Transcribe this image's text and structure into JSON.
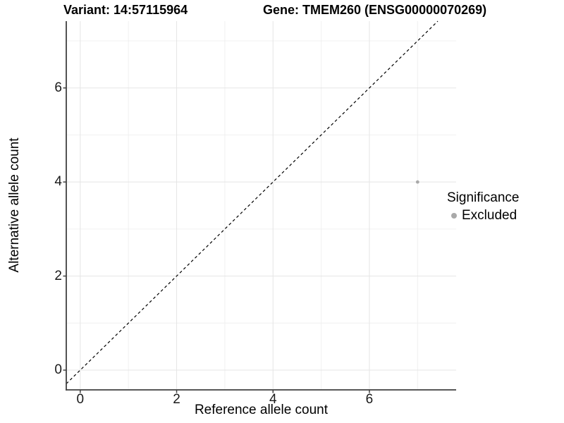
{
  "titles": {
    "variant": "Variant: 14:57115964",
    "gene": "Gene: TMEM260 (ENSG00000070269)"
  },
  "chart_data": {
    "type": "scatter",
    "xlabel": "Reference allele count",
    "ylabel": "Alternative allele count",
    "xlim": [
      -0.29,
      7.8
    ],
    "ylim": [
      -0.42,
      7.42
    ],
    "x_ticks": [
      0,
      2,
      4,
      6
    ],
    "y_ticks": [
      0,
      2,
      4,
      6
    ],
    "x_minor_ticks": [
      1,
      3,
      5,
      7
    ],
    "y_minor_ticks": [
      1,
      3,
      5,
      7
    ],
    "grid": true,
    "points": [
      {
        "x": 7,
        "y": 4,
        "significance": "Excluded"
      }
    ],
    "identity_line": {
      "slope": 1,
      "intercept": 0,
      "style": "dashed",
      "color": "#000000"
    },
    "legend": {
      "position": "right",
      "title": "Significance",
      "entries": [
        {
          "label": "Excluded",
          "color": "#a9a9a9"
        }
      ]
    },
    "colors": {
      "point": "#a9a9a9",
      "axis_line": "#404040",
      "major_grid": "#e5e5e5",
      "minor_grid": "#f0f0f0",
      "text": "#000000"
    }
  }
}
